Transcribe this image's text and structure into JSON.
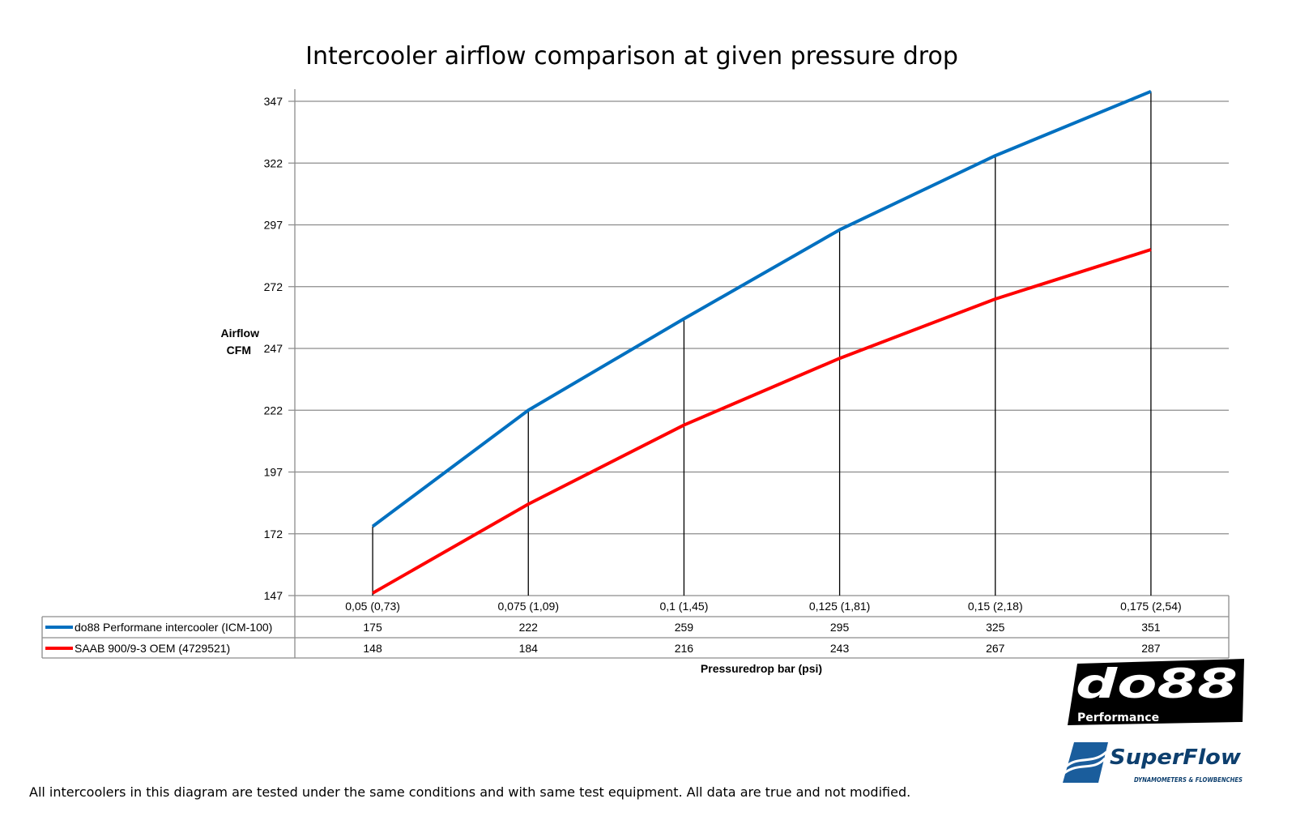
{
  "chart_data": {
    "type": "line",
    "title": "Intercooler airflow comparison at given pressure drop",
    "xlabel": "Pressuredrop bar (psi)",
    "ylabel": [
      "Airflow",
      "CFM"
    ],
    "categories": [
      "0,05 (0,73)",
      "0,075 (1,09)",
      "0,1 (1,45)",
      "0,125 (1,81)",
      "0,15 (2,18)",
      "0,175 (2,54)"
    ],
    "ylim": [
      147,
      347
    ],
    "yticks": [
      147,
      172,
      197,
      222,
      247,
      272,
      297,
      322,
      347
    ],
    "grid": true,
    "legend": "data-table-below",
    "series": [
      {
        "name": "do88 Performane intercooler (ICM-100)",
        "color": "#0070C0",
        "values": [
          175,
          222,
          259,
          295,
          325,
          351
        ]
      },
      {
        "name": "SAAB 900/9-3 OEM (4729521)",
        "color": "#FF0000",
        "values": [
          148,
          184,
          216,
          243,
          267,
          287
        ]
      }
    ],
    "drop_lines": true
  },
  "footer": "All intercoolers in this diagram are tested under the same conditions and with same test equipment. All data are true and not modified.",
  "logos": {
    "do88": "do88 Performance",
    "superflow": "SuperFlow DYNAMOMETERS & FLOWBENCHES"
  }
}
